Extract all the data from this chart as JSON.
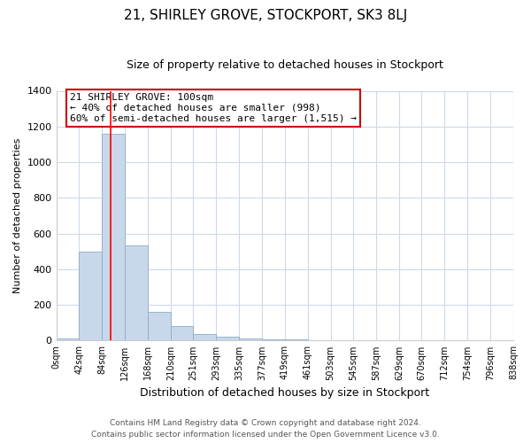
{
  "title": "21, SHIRLEY GROVE, STOCKPORT, SK3 8LJ",
  "subtitle": "Size of property relative to detached houses in Stockport",
  "xlabel": "Distribution of detached houses by size in Stockport",
  "ylabel": "Number of detached properties",
  "bins": [
    0,
    42,
    84,
    126,
    168,
    210,
    251,
    293,
    335,
    377,
    419,
    461,
    503,
    545,
    587,
    629,
    670,
    712,
    754,
    796,
    838
  ],
  "counts": [
    10,
    500,
    1160,
    535,
    160,
    82,
    38,
    20,
    14,
    8,
    5,
    0,
    0,
    0,
    0,
    0,
    0,
    0,
    0,
    0
  ],
  "bar_color": "#c8d8ea",
  "bar_edge_color": "#8aaec8",
  "red_line_x": 100,
  "annotation_title": "21 SHIRLEY GROVE: 100sqm",
  "annotation_line1": "← 40% of detached houses are smaller (998)",
  "annotation_line2": "60% of semi-detached houses are larger (1,515) →",
  "annotation_box_color": "#ffffff",
  "annotation_box_edge": "#cc0000",
  "ylim": [
    0,
    1400
  ],
  "yticks": [
    0,
    200,
    400,
    600,
    800,
    1000,
    1200,
    1400
  ],
  "tick_labels": [
    "0sqm",
    "42sqm",
    "84sqm",
    "126sqm",
    "168sqm",
    "210sqm",
    "251sqm",
    "293sqm",
    "335sqm",
    "377sqm",
    "419sqm",
    "461sqm",
    "503sqm",
    "545sqm",
    "587sqm",
    "629sqm",
    "670sqm",
    "712sqm",
    "754sqm",
    "796sqm",
    "838sqm"
  ],
  "footer1": "Contains HM Land Registry data © Crown copyright and database right 2024.",
  "footer2": "Contains public sector information licensed under the Open Government Licence v3.0.",
  "bg_color": "#ffffff",
  "grid_color": "#ccdaec",
  "title_fontsize": 11,
  "subtitle_fontsize": 9,
  "ylabel_fontsize": 8,
  "xlabel_fontsize": 9,
  "ytick_fontsize": 8,
  "xtick_fontsize": 7,
  "footer_fontsize": 6.5
}
